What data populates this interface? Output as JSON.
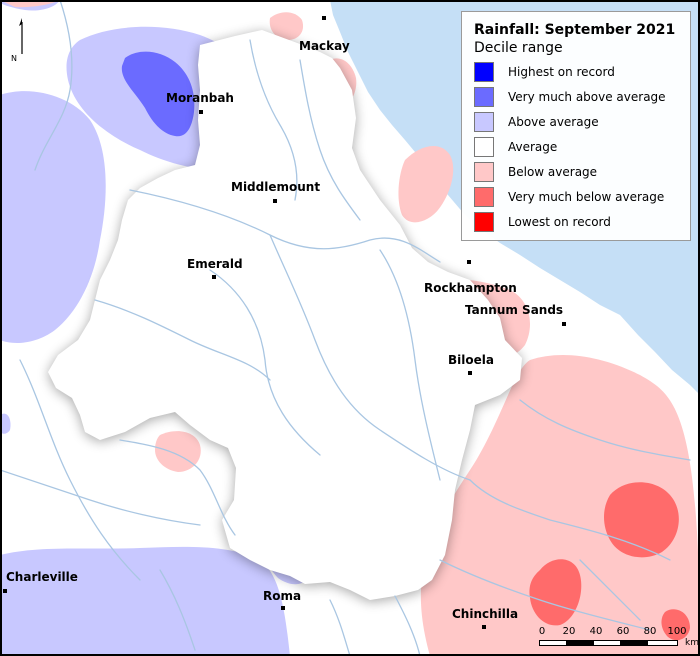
{
  "legend": {
    "title": "Rainfall: September 2021",
    "subtitle": "Decile range",
    "items": [
      {
        "label": "Highest on record",
        "color": "#0000ff"
      },
      {
        "label": "Very much above average",
        "color": "#6b6bff"
      },
      {
        "label": "Above average",
        "color": "#c8c8ff"
      },
      {
        "label": "Average",
        "color": "#ffffff"
      },
      {
        "label": "Below average",
        "color": "#ffc8c8"
      },
      {
        "label": "Very much below average",
        "color": "#ff6b6b"
      },
      {
        "label": "Lowest on record",
        "color": "#ff0000"
      }
    ]
  },
  "towns": [
    {
      "name": "Mackay"
    },
    {
      "name": "Moranbah"
    },
    {
      "name": "Middlemount"
    },
    {
      "name": "Emerald"
    },
    {
      "name": "Rockhampton"
    },
    {
      "name": "Tannum Sands"
    },
    {
      "name": "Biloela"
    },
    {
      "name": "Charleville"
    },
    {
      "name": "Roma"
    },
    {
      "name": "Chinchilla"
    }
  ],
  "north_arrow": {
    "label": "N"
  },
  "scale_bar": {
    "ticks": [
      "0",
      "20",
      "40",
      "60",
      "80",
      "100"
    ],
    "unit": "km"
  },
  "colors": {
    "ocean": "#c5dff6",
    "river": "#a9c6e2",
    "boundary": "#666666"
  }
}
